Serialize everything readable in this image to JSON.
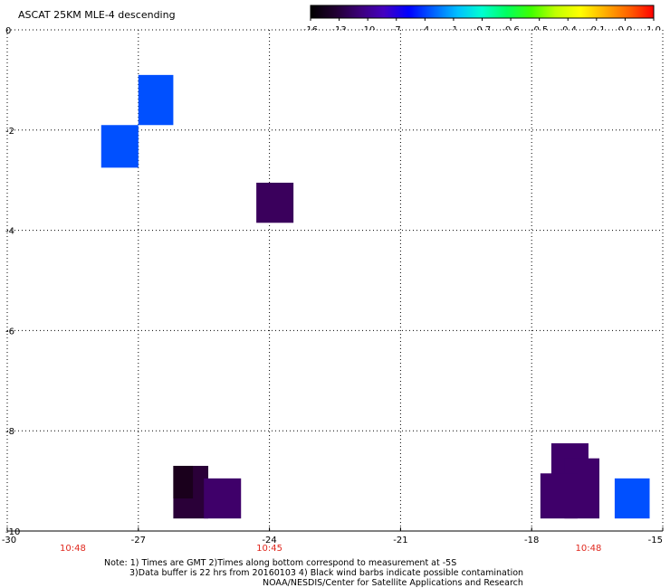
{
  "title": "ASCAT 25KM MLE-4 descending",
  "colorbar": {
    "labels": [
      "-16",
      "-13",
      "-10",
      "-7",
      "-4",
      "-1",
      "-0.7",
      "-0.6",
      "-0.5",
      "-0.4",
      "-0.1",
      "0.0",
      "1.0"
    ],
    "colors": [
      "#000000",
      "#200030",
      "#3c0078",
      "#4400c0",
      "#0000ff",
      "#0060ff",
      "#00c0ff",
      "#00ffd0",
      "#00ff60",
      "#40ff00",
      "#c0ff00",
      "#ffff00",
      "#ffb000",
      "#ff6000",
      "#ff0000"
    ]
  },
  "chart_data": {
    "type": "heatmap",
    "xlim": [
      -30,
      -15
    ],
    "ylim": [
      -10,
      0
    ],
    "x_ticks": [
      "-30",
      "-27",
      "-24",
      "-21",
      "-18",
      "-15"
    ],
    "y_ticks": [
      "0",
      "-2",
      "-4",
      "-6",
      "-8",
      "-10"
    ],
    "grid": true,
    "cells": [
      {
        "x0": -27.0,
        "x1": -26.2,
        "y0": -1.9,
        "y1": -0.9,
        "color": "#0050ff"
      },
      {
        "x0": -27.85,
        "x1": -27.0,
        "y0": -2.75,
        "y1": -1.9,
        "color": "#0050ff"
      },
      {
        "x0": -24.3,
        "x1": -23.45,
        "y0": -3.85,
        "y1": -3.05,
        "color": "#3a005c"
      },
      {
        "x0": -26.2,
        "x1": -25.4,
        "y0": -9.75,
        "y1": -8.7,
        "color": "#2a0038"
      },
      {
        "x0": -26.2,
        "x1": -25.75,
        "y0": -9.35,
        "y1": -8.7,
        "color": "#1a001c"
      },
      {
        "x0": -25.5,
        "x1": -24.65,
        "y0": -9.75,
        "y1": -8.95,
        "color": "#3f006a"
      },
      {
        "x0": -17.55,
        "x1": -16.7,
        "y0": -9.55,
        "y1": -8.25,
        "color": "#3f006a"
      },
      {
        "x0": -17.25,
        "x1": -16.45,
        "y0": -9.75,
        "y1": -8.55,
        "color": "#3f006a"
      },
      {
        "x0": -17.8,
        "x1": -16.95,
        "y0": -9.75,
        "y1": -8.85,
        "color": "#3f006a"
      },
      {
        "x0": -16.1,
        "x1": -15.3,
        "y0": -9.75,
        "y1": -8.95,
        "color": "#0050ff"
      }
    ],
    "time_labels": [
      {
        "x": -28.5,
        "text": "10:48"
      },
      {
        "x": -24.0,
        "text": "10:45"
      },
      {
        "x": -16.7,
        "text": "10:48"
      }
    ]
  },
  "notes": [
    "Note: 1) Times are GMT 2)Times along bottom correspond to measurement at -5S",
    "3)Data buffer is 22 hrs from 20160103 4) Black wind barbs indicate possible contamination",
    "NOAA/NESDIS/Center for Satellite Applications and Research"
  ]
}
